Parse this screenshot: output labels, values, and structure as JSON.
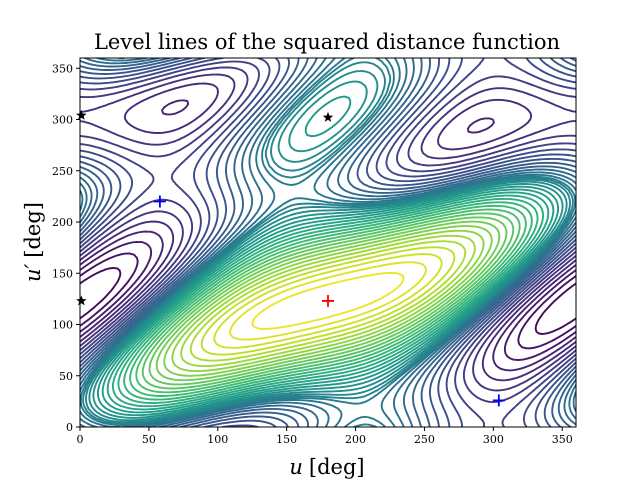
{
  "chart_data": {
    "type": "contour",
    "title": "Level lines of the squared distance function",
    "xlabel_var": "u",
    "xlabel_unit": "[deg]",
    "ylabel_var": "u′",
    "ylabel_unit": "[deg]",
    "xlim": [
      0,
      360
    ],
    "ylim": [
      0,
      360
    ],
    "xticks": [
      0,
      50,
      100,
      150,
      200,
      250,
      300,
      350
    ],
    "yticks": [
      0,
      50,
      100,
      150,
      200,
      250,
      300,
      350
    ],
    "colormap": "viridis",
    "grid": false,
    "levels": 40,
    "maximum": {
      "x": 180,
      "y": 123
    },
    "markers": [
      {
        "kind": "plus",
        "color": "#ff0000",
        "x": 180,
        "y": 123
      },
      {
        "kind": "plus",
        "color": "#0000ff",
        "x": 58,
        "y": 220
      },
      {
        "kind": "plus",
        "color": "#0000ff",
        "x": 304,
        "y": 26
      },
      {
        "kind": "star",
        "color": "#000000",
        "x": 180,
        "y": 302
      },
      {
        "kind": "star",
        "color": "#000000",
        "x": 1,
        "y": 304
      },
      {
        "kind": "star",
        "color": "#000000",
        "x": 1,
        "y": 123
      }
    ]
  }
}
